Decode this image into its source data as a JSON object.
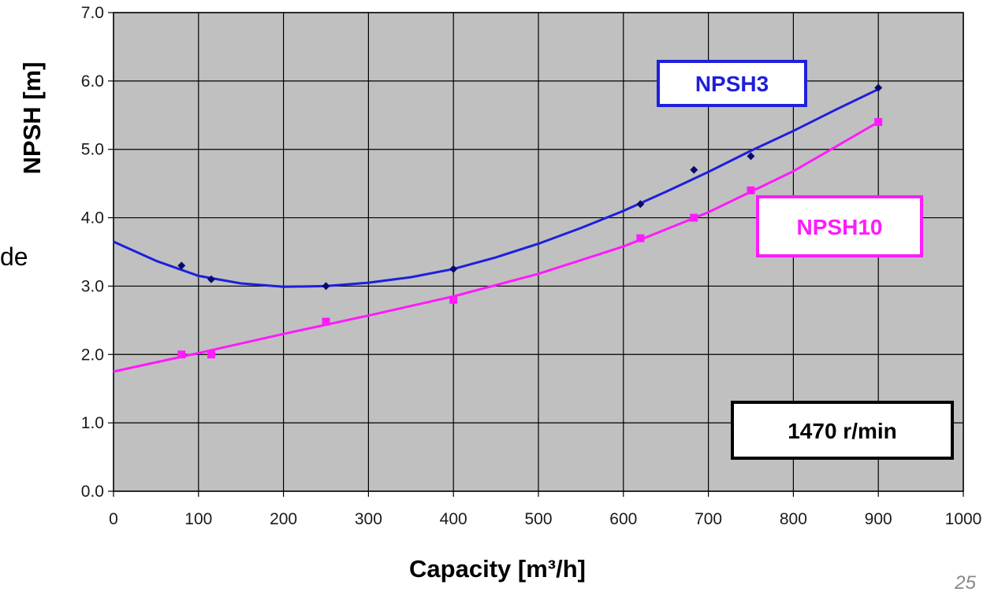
{
  "page": {
    "side_fragment": "de",
    "page_number": "25"
  },
  "chart_data": {
    "type": "scatter",
    "xlabel": "Capacity [m³/h]",
    "ylabel": "NPSH [m]",
    "xlim": [
      0,
      1000
    ],
    "ylim": [
      0,
      7
    ],
    "x_ticks": [
      "0",
      "100",
      "200",
      "300",
      "400",
      "500",
      "600",
      "700",
      "800",
      "900",
      "1000"
    ],
    "y_ticks": [
      "0.0",
      "1.0",
      "2.0",
      "3.0",
      "4.0",
      "5.0",
      "6.0",
      "7.0"
    ],
    "grid": true,
    "background": "#c0c0c0",
    "series": [
      {
        "name": "NPSH3",
        "color": "#1f1fdc",
        "marker": "diamond",
        "points": [
          [
            80,
            3.3
          ],
          [
            115,
            3.1
          ],
          [
            250,
            3.0
          ],
          [
            400,
            3.25
          ],
          [
            620,
            4.2
          ],
          [
            683,
            4.7
          ],
          [
            750,
            4.9
          ],
          [
            900,
            5.9
          ]
        ],
        "trendline": [
          [
            0,
            3.65
          ],
          [
            50,
            3.37
          ],
          [
            100,
            3.15
          ],
          [
            150,
            3.04
          ],
          [
            200,
            2.99
          ],
          [
            250,
            3.0
          ],
          [
            300,
            3.05
          ],
          [
            350,
            3.13
          ],
          [
            400,
            3.25
          ],
          [
            450,
            3.42
          ],
          [
            500,
            3.62
          ],
          [
            550,
            3.85
          ],
          [
            600,
            4.1
          ],
          [
            650,
            4.38
          ],
          [
            700,
            4.67
          ],
          [
            750,
            4.98
          ],
          [
            800,
            5.27
          ],
          [
            850,
            5.58
          ],
          [
            900,
            5.88
          ]
        ]
      },
      {
        "name": "NPSH10",
        "color": "#ff1aff",
        "marker": "square",
        "points": [
          [
            80,
            2.0
          ],
          [
            115,
            2.0
          ],
          [
            250,
            2.48
          ],
          [
            400,
            2.8
          ],
          [
            620,
            3.7
          ],
          [
            683,
            4.0
          ],
          [
            750,
            4.4
          ],
          [
            900,
            5.4
          ]
        ],
        "trendline": [
          [
            0,
            1.75
          ],
          [
            100,
            2.02
          ],
          [
            200,
            2.3
          ],
          [
            300,
            2.57
          ],
          [
            400,
            2.85
          ],
          [
            500,
            3.18
          ],
          [
            600,
            3.58
          ],
          [
            700,
            4.08
          ],
          [
            800,
            4.68
          ],
          [
            900,
            5.4
          ]
        ]
      }
    ],
    "annotations": [
      {
        "text": "NPSH3",
        "color": "#1f1fdc"
      },
      {
        "text": "NPSH10",
        "color": "#ff1aff"
      },
      {
        "text": "1470 r/min",
        "color": "#000000"
      }
    ]
  }
}
